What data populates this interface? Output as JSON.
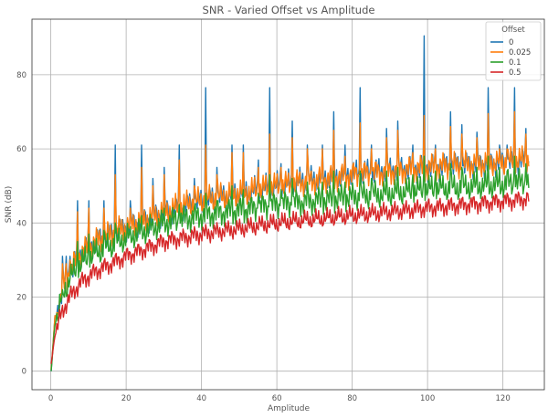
{
  "chart_data": {
    "type": "line",
    "title": "SNR - Varied Offset vs Amplitude",
    "xlabel": "Amplitude",
    "ylabel": "SNR (dB)",
    "xlim": [
      -5,
      131
    ],
    "ylim": [
      -5,
      95
    ],
    "xticks": [
      0,
      20,
      40,
      60,
      80,
      100,
      120
    ],
    "yticks": [
      0,
      20,
      40,
      60,
      80
    ],
    "grid": true,
    "legend": {
      "title": "Offset",
      "placement": "top-right"
    },
    "x_range": [
      0.1,
      127
    ],
    "x_step": 0.25,
    "series": [
      {
        "name": "0",
        "color": "#1f77b4",
        "trend": [
          [
            0.1,
            0
          ],
          [
            1,
            13
          ],
          [
            2,
            17
          ],
          [
            3,
            22
          ],
          [
            5,
            27
          ],
          [
            8,
            32
          ],
          [
            12,
            35
          ],
          [
            20,
            39
          ],
          [
            30,
            43
          ],
          [
            40,
            46
          ],
          [
            60,
            50
          ],
          [
            80,
            53
          ],
          [
            100,
            55
          ],
          [
            127,
            57
          ]
        ],
        "spikes": [
          [
            1,
            15
          ],
          [
            2,
            15
          ],
          [
            3,
            31
          ],
          [
            4,
            31
          ],
          [
            5,
            31
          ],
          [
            7,
            46
          ],
          [
            10,
            46
          ],
          [
            14,
            46
          ],
          [
            17,
            61
          ],
          [
            21,
            46
          ],
          [
            24,
            61
          ],
          [
            27,
            52
          ],
          [
            30,
            55
          ],
          [
            34,
            61
          ],
          [
            38,
            52
          ],
          [
            41,
            76.5
          ],
          [
            44,
            55
          ],
          [
            48,
            61
          ],
          [
            51,
            61
          ],
          [
            55,
            57
          ],
          [
            58,
            76.5
          ],
          [
            61,
            56
          ],
          [
            64,
            67.5
          ],
          [
            68,
            61
          ],
          [
            72,
            61
          ],
          [
            75,
            70
          ],
          [
            78,
            61
          ],
          [
            82,
            76.5
          ],
          [
            85,
            61
          ],
          [
            89,
            65.5
          ],
          [
            92,
            67.5
          ],
          [
            96,
            61
          ],
          [
            99,
            90.5
          ],
          [
            102,
            61
          ],
          [
            106,
            70
          ],
          [
            109,
            66.5
          ],
          [
            113,
            64.5
          ],
          [
            116,
            76.5
          ],
          [
            119,
            61
          ],
          [
            121,
            61
          ],
          [
            123,
            76.5
          ],
          [
            126,
            65.5
          ]
        ]
      },
      {
        "name": "0.025",
        "color": "#ff7f0e",
        "trend": [
          [
            0.1,
            0.5
          ],
          [
            1,
            13
          ],
          [
            2,
            17
          ],
          [
            3,
            22
          ],
          [
            5,
            27
          ],
          [
            8,
            32
          ],
          [
            12,
            35
          ],
          [
            20,
            39
          ],
          [
            30,
            43
          ],
          [
            40,
            46
          ],
          [
            60,
            50
          ],
          [
            80,
            53
          ],
          [
            100,
            55
          ],
          [
            127,
            57
          ]
        ],
        "spikes": [
          [
            1,
            15
          ],
          [
            2,
            15
          ],
          [
            3,
            29
          ],
          [
            4,
            29
          ],
          [
            5,
            30
          ],
          [
            7,
            43
          ],
          [
            10,
            44
          ],
          [
            14,
            44
          ],
          [
            17,
            53
          ],
          [
            21,
            44
          ],
          [
            24,
            55
          ],
          [
            27,
            50
          ],
          [
            30,
            53
          ],
          [
            34,
            57
          ],
          [
            38,
            50
          ],
          [
            41,
            61
          ],
          [
            44,
            53
          ],
          [
            48,
            59
          ],
          [
            51,
            59
          ],
          [
            55,
            55
          ],
          [
            58,
            64
          ],
          [
            61,
            55
          ],
          [
            64,
            63
          ],
          [
            68,
            60
          ],
          [
            72,
            60
          ],
          [
            75,
            65
          ],
          [
            78,
            58
          ],
          [
            82,
            67
          ],
          [
            85,
            60
          ],
          [
            89,
            63
          ],
          [
            92,
            65
          ],
          [
            96,
            59
          ],
          [
            99,
            69
          ],
          [
            102,
            60
          ],
          [
            106,
            66
          ],
          [
            109,
            64
          ],
          [
            113,
            63
          ],
          [
            116,
            69.5
          ],
          [
            119,
            60
          ],
          [
            121,
            60
          ],
          [
            123,
            70
          ],
          [
            126,
            64
          ]
        ]
      },
      {
        "name": "0.1",
        "color": "#2ca02c",
        "trend": [
          [
            0.1,
            0
          ],
          [
            1,
            12
          ],
          [
            2,
            16
          ],
          [
            3,
            20
          ],
          [
            5,
            25
          ],
          [
            8,
            29
          ],
          [
            12,
            32
          ],
          [
            20,
            36
          ],
          [
            30,
            40
          ],
          [
            40,
            42
          ],
          [
            60,
            45
          ],
          [
            80,
            47
          ],
          [
            100,
            49
          ],
          [
            127,
            51
          ]
        ],
        "spikes": [
          [
            3,
            22
          ],
          [
            5,
            25
          ],
          [
            7,
            35
          ],
          [
            10,
            37
          ],
          [
            14,
            38
          ],
          [
            17,
            40
          ],
          [
            21,
            39
          ],
          [
            24,
            42
          ],
          [
            27,
            41
          ],
          [
            30,
            44
          ],
          [
            34,
            45
          ],
          [
            38,
            44
          ],
          [
            41,
            48
          ],
          [
            44,
            46
          ],
          [
            48,
            50
          ],
          [
            51,
            49
          ],
          [
            55,
            48
          ],
          [
            58,
            53
          ],
          [
            61,
            49
          ],
          [
            64,
            52
          ],
          [
            68,
            51
          ],
          [
            72,
            51
          ],
          [
            75,
            54
          ],
          [
            78,
            51
          ],
          [
            82,
            54
          ],
          [
            85,
            52
          ],
          [
            89,
            54
          ],
          [
            92,
            55
          ],
          [
            96,
            53
          ],
          [
            99,
            58
          ],
          [
            102,
            54
          ],
          [
            106,
            56
          ],
          [
            109,
            55
          ],
          [
            113,
            55
          ],
          [
            116,
            58
          ],
          [
            119,
            55
          ],
          [
            121,
            54
          ],
          [
            123,
            58
          ],
          [
            126,
            56
          ]
        ]
      },
      {
        "name": "0.5",
        "color": "#d62728",
        "trend": [
          [
            0.1,
            2
          ],
          [
            1,
            9
          ],
          [
            2,
            13
          ],
          [
            3,
            16
          ],
          [
            5,
            20
          ],
          [
            8,
            24
          ],
          [
            12,
            27
          ],
          [
            20,
            31
          ],
          [
            30,
            35
          ],
          [
            40,
            37
          ],
          [
            60,
            40
          ],
          [
            80,
            42
          ],
          [
            100,
            44
          ],
          [
            127,
            46.5
          ]
        ],
        "spikes": []
      }
    ]
  }
}
